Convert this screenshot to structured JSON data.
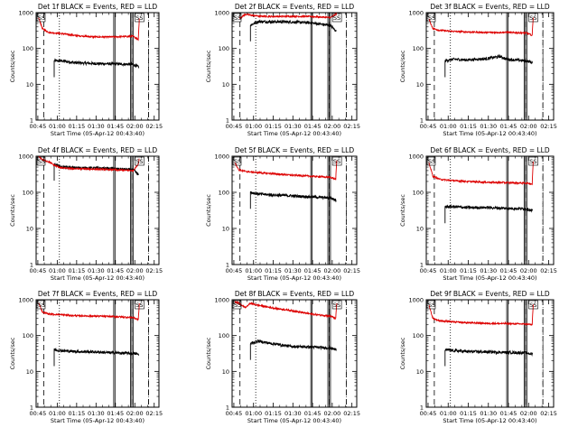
{
  "figure": {
    "x_axis_label": "Start Time (05-Apr-12 00:43:40)",
    "y_axis_label": "Counts/sec",
    "x_tick_labels": [
      "00:45",
      "01:00",
      "01:15",
      "01:30",
      "01:45",
      "02:00",
      "02:15"
    ],
    "y_tick_labels": [
      "1",
      "10",
      "100",
      "1000"
    ],
    "colors": {
      "events": "#000000",
      "lld": "#dd0000",
      "axes": "#000000",
      "background": "#ffffff"
    }
  },
  "chart_data": [
    {
      "type": "line",
      "title": "Det 1f BLACK = Events, RED = LLD",
      "xlabel": "Start Time (05-Apr-12 00:43:40)",
      "ylabel": "Counts/sec",
      "x_unit": "minutes",
      "xlim": [
        0,
        95
      ],
      "ylim": [
        1,
        1000
      ],
      "ylog": true,
      "series": [
        {
          "name": "Events",
          "color": "#000000",
          "x": [
            14,
            20,
            30,
            45,
            60,
            75,
            79.5
          ],
          "y": [
            45,
            45,
            40,
            38,
            37,
            36,
            30
          ]
        },
        {
          "name": "LLD",
          "color": "#dd0000",
          "x": [
            2,
            5,
            10,
            20,
            30,
            45,
            60,
            75,
            79,
            80
          ],
          "y": [
            700,
            350,
            280,
            260,
            230,
            210,
            210,
            220,
            180,
            1000
          ]
        }
      ],
      "vlines_dashed": [
        6,
        74,
        87
      ],
      "vlines_dotted": [
        18
      ],
      "vlines_solid": [
        60,
        61,
        73,
        74,
        75
      ],
      "markers": [
        "SS",
        "SS"
      ]
    },
    {
      "type": "line",
      "title": "Det 2f BLACK = Events, RED = LLD",
      "xlabel": "Start Time (05-Apr-12 00:43:40)",
      "ylabel": "Counts/sec",
      "x_unit": "minutes",
      "xlim": [
        0,
        95
      ],
      "ylim": [
        1,
        1000
      ],
      "ylog": true,
      "series": [
        {
          "name": "Events",
          "color": "#000000",
          "x": [
            14,
            20,
            30,
            45,
            60,
            75,
            79.5
          ],
          "y": [
            450,
            560,
            560,
            550,
            520,
            440,
            300
          ]
        },
        {
          "name": "LLD",
          "color": "#dd0000",
          "x": [
            6,
            10,
            14,
            20,
            30,
            45,
            60,
            75,
            79,
            80
          ],
          "y": [
            700,
            900,
            850,
            800,
            780,
            790,
            780,
            730,
            900,
            1000
          ]
        }
      ],
      "vlines_dashed": [
        6,
        74,
        87
      ],
      "vlines_dotted": [
        18
      ],
      "vlines_solid": [
        60,
        61,
        73,
        74,
        75
      ],
      "markers": [
        "SS",
        "SS"
      ]
    },
    {
      "type": "line",
      "title": "Det 3f BLACK = Events, RED = LLD",
      "xlabel": "Start Time (05-Apr-12 00:43:40)",
      "ylabel": "Counts/sec",
      "x_unit": "minutes",
      "xlim": [
        0,
        95
      ],
      "ylim": [
        1,
        1000
      ],
      "ylog": true,
      "series": [
        {
          "name": "Events",
          "color": "#000000",
          "x": [
            14,
            20,
            30,
            45,
            55,
            60,
            75,
            79.5
          ],
          "y": [
            45,
            50,
            48,
            52,
            60,
            50,
            45,
            40
          ]
        },
        {
          "name": "LLD",
          "color": "#dd0000",
          "x": [
            2,
            5,
            10,
            20,
            30,
            45,
            60,
            75,
            79,
            80
          ],
          "y": [
            650,
            360,
            320,
            300,
            290,
            280,
            280,
            270,
            230,
            1000
          ]
        }
      ],
      "vlines_dashed": [
        6,
        74,
        87
      ],
      "vlines_dotted": [
        18
      ],
      "vlines_solid": [
        60,
        61,
        73,
        74,
        75
      ],
      "markers": [
        "SS",
        "SS"
      ]
    },
    {
      "type": "line",
      "title": "Det 4f BLACK = Events, RED = LLD",
      "xlabel": "Start Time (05-Apr-12 00:43:40)",
      "ylabel": "Counts/sec",
      "x_unit": "minutes",
      "xlim": [
        0,
        95
      ],
      "ylim": [
        1,
        1000
      ],
      "ylog": true,
      "series": [
        {
          "name": "Events",
          "color": "#000000",
          "x": [
            14,
            20,
            30,
            45,
            60,
            75,
            79.5
          ],
          "y": [
            600,
            500,
            480,
            470,
            450,
            420,
            300
          ]
        },
        {
          "name": "LLD",
          "color": "#dd0000",
          "x": [
            2,
            5,
            10,
            14,
            20,
            30,
            45,
            60,
            75,
            79,
            80
          ],
          "y": [
            1000,
            800,
            700,
            560,
            470,
            450,
            440,
            420,
            400,
            600,
            1000
          ]
        }
      ],
      "vlines_dashed": [
        6,
        74,
        87
      ],
      "vlines_dotted": [
        18
      ],
      "vlines_solid": [
        60,
        61,
        73,
        74,
        75
      ],
      "markers": [
        "SS",
        "SS"
      ]
    },
    {
      "type": "line",
      "title": "Det 5f BLACK = Events, RED = LLD",
      "xlabel": "Start Time (05-Apr-12 00:43:40)",
      "ylabel": "Counts/sec",
      "x_unit": "minutes",
      "xlim": [
        0,
        95
      ],
      "ylim": [
        1,
        1000
      ],
      "ylog": true,
      "series": [
        {
          "name": "Events",
          "color": "#000000",
          "x": [
            14,
            20,
            30,
            45,
            60,
            75,
            79.5
          ],
          "y": [
            100,
            90,
            85,
            80,
            75,
            70,
            60
          ]
        },
        {
          "name": "LLD",
          "color": "#dd0000",
          "x": [
            2,
            5,
            10,
            20,
            30,
            45,
            60,
            75,
            79,
            80
          ],
          "y": [
            700,
            420,
            380,
            350,
            330,
            300,
            280,
            260,
            230,
            1000
          ]
        }
      ],
      "vlines_dashed": [
        6,
        74,
        87
      ],
      "vlines_dotted": [
        18
      ],
      "vlines_solid": [
        60,
        61,
        73,
        74,
        75
      ],
      "markers": [
        "SS",
        "SS"
      ]
    },
    {
      "type": "line",
      "title": "Det 6f BLACK = Events, RED = LLD",
      "xlabel": "Start Time (05-Apr-12 00:43:40)",
      "ylabel": "Counts/sec",
      "x_unit": "minutes",
      "xlim": [
        0,
        95
      ],
      "ylim": [
        1,
        1000
      ],
      "ylog": true,
      "series": [
        {
          "name": "Events",
          "color": "#000000",
          "x": [
            14,
            20,
            30,
            45,
            60,
            75,
            79.5
          ],
          "y": [
            40,
            40,
            38,
            38,
            36,
            35,
            30
          ]
        },
        {
          "name": "LLD",
          "color": "#dd0000",
          "x": [
            2,
            5,
            10,
            20,
            30,
            45,
            60,
            75,
            79,
            80
          ],
          "y": [
            650,
            280,
            230,
            210,
            200,
            190,
            185,
            180,
            170,
            1000
          ]
        }
      ],
      "vlines_dashed": [
        6,
        74,
        87
      ],
      "vlines_dotted": [
        18
      ],
      "vlines_solid": [
        60,
        61,
        73,
        74,
        75
      ],
      "markers": [
        "SS",
        "SS"
      ]
    },
    {
      "type": "line",
      "title": "Det 7f BLACK = Events, RED = LLD",
      "xlabel": "Start Time (05-Apr-12 00:43:40)",
      "ylabel": "Counts/sec",
      "x_unit": "minutes",
      "xlim": [
        0,
        95
      ],
      "ylim": [
        1,
        1000
      ],
      "ylog": true,
      "series": [
        {
          "name": "Events",
          "color": "#000000",
          "x": [
            14,
            20,
            30,
            45,
            60,
            75,
            79.5
          ],
          "y": [
            40,
            38,
            36,
            35,
            33,
            32,
            30
          ]
        },
        {
          "name": "LLD",
          "color": "#dd0000",
          "x": [
            2,
            5,
            10,
            20,
            30,
            45,
            60,
            75,
            79,
            80
          ],
          "y": [
            800,
            450,
            400,
            380,
            360,
            350,
            340,
            320,
            280,
            1000
          ]
        }
      ],
      "vlines_dashed": [
        6,
        74,
        87
      ],
      "vlines_dotted": [
        18
      ],
      "vlines_solid": [
        60,
        61,
        73,
        74,
        75
      ],
      "markers": [
        "SS",
        "SS"
      ]
    },
    {
      "type": "line",
      "title": "Det 8f BLACK = Events, RED = LLD",
      "xlabel": "Start Time (05-Apr-12 00:43:40)",
      "ylabel": "Counts/sec",
      "x_unit": "minutes",
      "xlim": [
        0,
        95
      ],
      "ylim": [
        1,
        1000
      ],
      "ylog": true,
      "series": [
        {
          "name": "Events",
          "color": "#000000",
          "x": [
            14,
            20,
            30,
            45,
            60,
            75,
            79.5
          ],
          "y": [
            60,
            70,
            60,
            50,
            48,
            45,
            40
          ]
        },
        {
          "name": "LLD",
          "color": "#dd0000",
          "x": [
            2,
            5,
            10,
            14,
            20,
            30,
            45,
            60,
            75,
            79,
            80
          ],
          "y": [
            900,
            800,
            600,
            800,
            700,
            600,
            500,
            400,
            350,
            300,
            1000
          ]
        }
      ],
      "vlines_dashed": [
        6,
        74,
        87
      ],
      "vlines_dotted": [
        18
      ],
      "vlines_solid": [
        60,
        61,
        73,
        74,
        75
      ],
      "markers": [
        "SS",
        "SS"
      ]
    },
    {
      "type": "line",
      "title": "Det 9f BLACK = Events, RED = LLD",
      "xlabel": "Start Time (05-Apr-12 00:43:40)",
      "ylabel": "Counts/sec",
      "x_unit": "minutes",
      "xlim": [
        0,
        95
      ],
      "ylim": [
        1,
        1000
      ],
      "ylog": true,
      "series": [
        {
          "name": "Events",
          "color": "#000000",
          "x": [
            14,
            20,
            30,
            45,
            60,
            75,
            79.5
          ],
          "y": [
            40,
            38,
            36,
            35,
            34,
            33,
            30
          ]
        },
        {
          "name": "LLD",
          "color": "#dd0000",
          "x": [
            2,
            5,
            10,
            20,
            30,
            45,
            60,
            75,
            79,
            80
          ],
          "y": [
            700,
            300,
            260,
            240,
            230,
            220,
            215,
            210,
            200,
            1000
          ]
        }
      ],
      "vlines_dashed": [
        6,
        74,
        87
      ],
      "vlines_dotted": [
        18
      ],
      "vlines_solid": [
        60,
        61,
        73,
        74,
        75
      ],
      "markers": [
        "SS",
        "SS"
      ]
    }
  ]
}
